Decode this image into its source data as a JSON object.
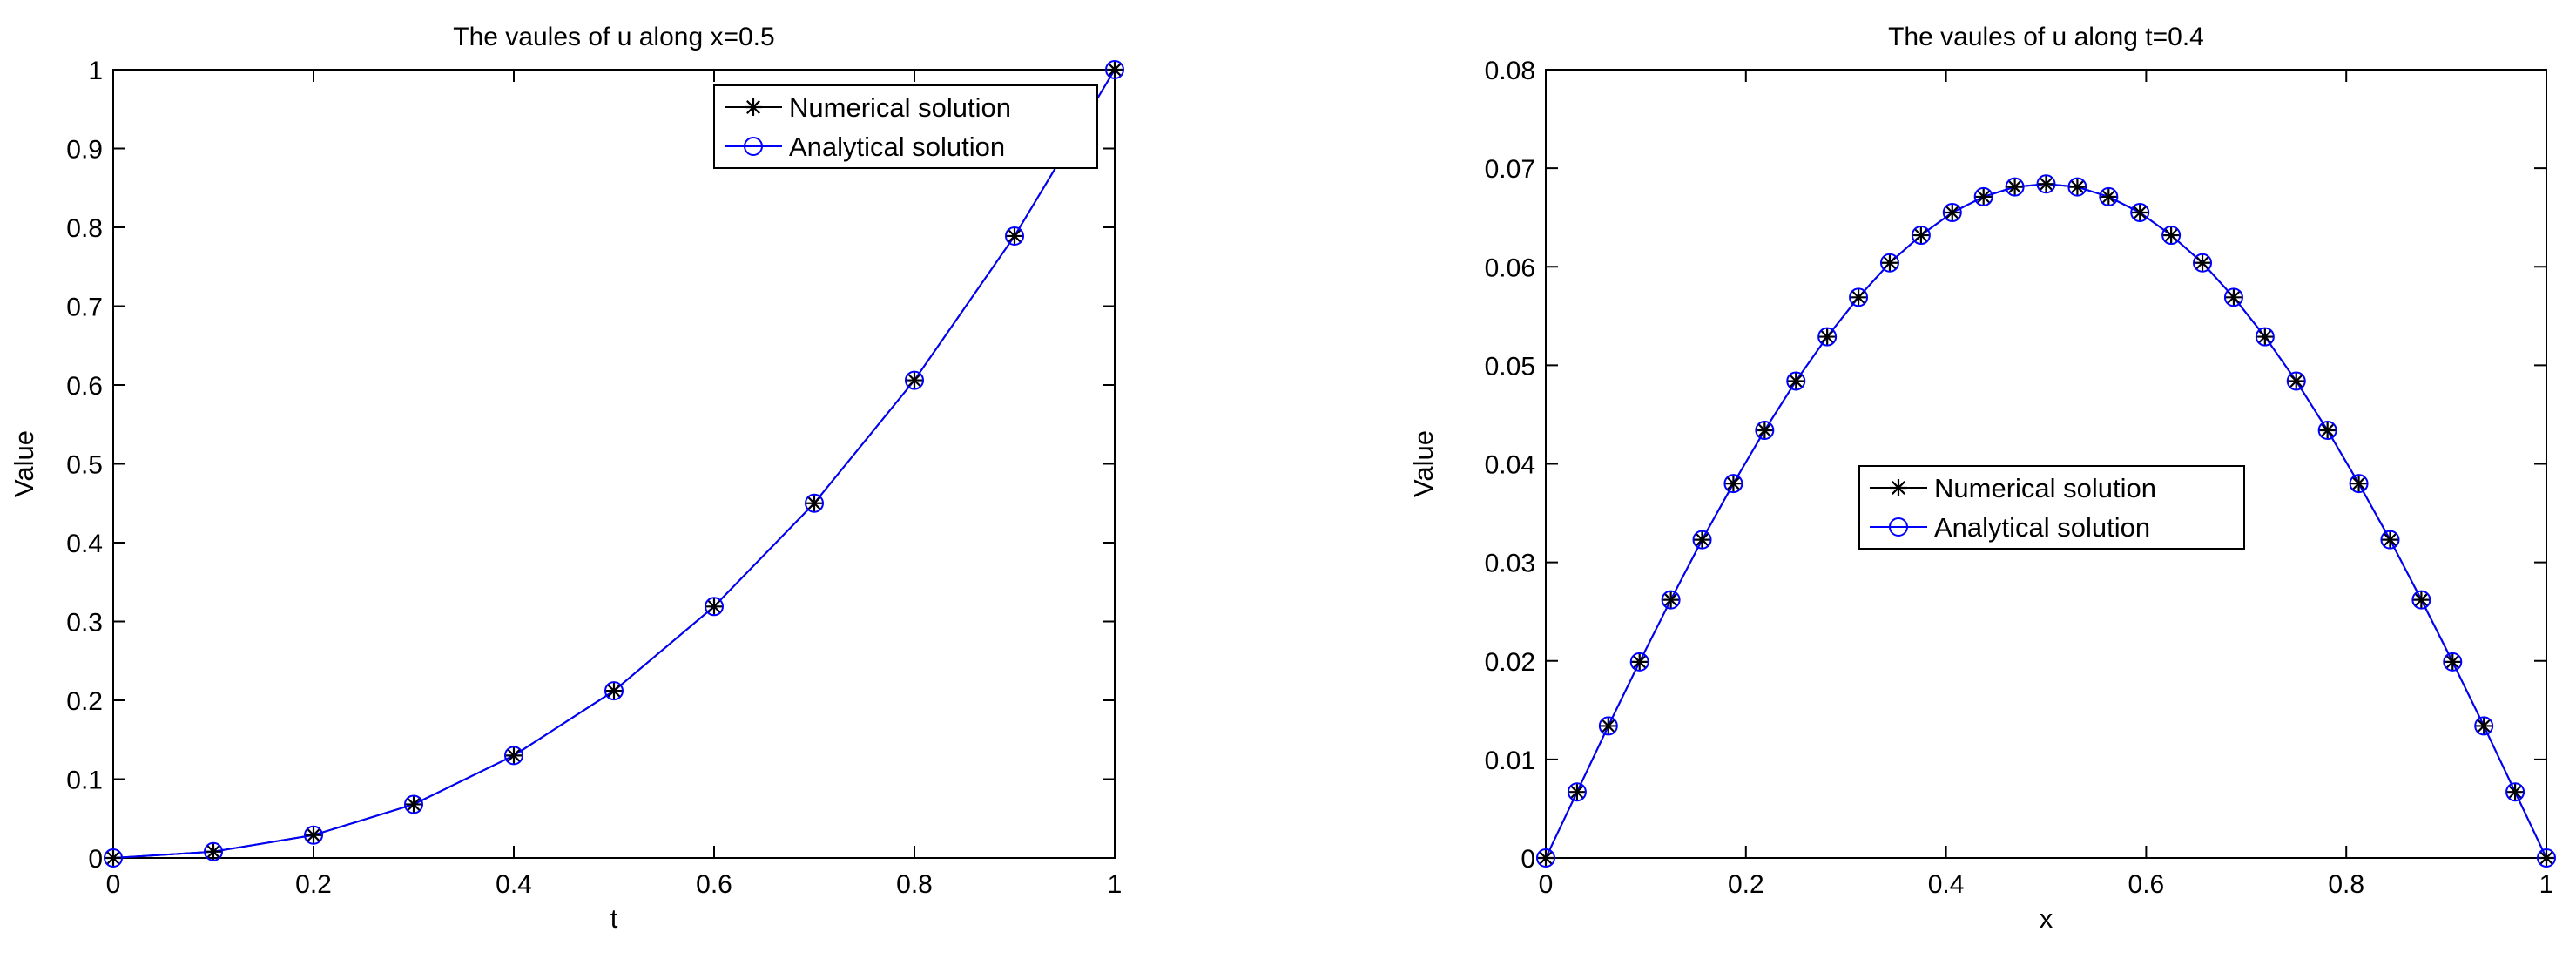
{
  "chart_data": [
    {
      "type": "line",
      "title": "The vaules of u along x=0.5",
      "xlabel": "t",
      "ylabel": "Value",
      "xlim": [
        0,
        1
      ],
      "ylim": [
        0,
        1
      ],
      "xticks": [
        0,
        0.2,
        0.4,
        0.6,
        0.8,
        1
      ],
      "xtick_labels": [
        "0",
        "0.2",
        "0.4",
        "0.6",
        "0.8",
        "1"
      ],
      "yticks": [
        0,
        0.1,
        0.2,
        0.3,
        0.4,
        0.5,
        0.6,
        0.7,
        0.8,
        0.9,
        1
      ],
      "ytick_labels": [
        "0",
        "0.1",
        "0.2",
        "0.3",
        "0.4",
        "0.5",
        "0.6",
        "0.7",
        "0.8",
        "0.9",
        "1"
      ],
      "grid": false,
      "legend_position": "top-right",
      "x": [
        0,
        0.1,
        0.2,
        0.3,
        0.4,
        0.5,
        0.6,
        0.7,
        0.8,
        0.9,
        1
      ],
      "series": [
        {
          "name": "Numerical solution",
          "color": "#000000",
          "marker": "asterisk",
          "values": [
            0,
            0.008,
            0.029,
            0.068,
            0.13,
            0.212,
            0.319,
            0.45,
            0.606,
            0.789,
            1
          ]
        },
        {
          "name": "Analytical solution",
          "color": "#0000ff",
          "marker": "circle",
          "values": [
            0,
            0.008,
            0.029,
            0.068,
            0.13,
            0.212,
            0.319,
            0.45,
            0.606,
            0.789,
            1
          ]
        }
      ]
    },
    {
      "type": "line",
      "title": "The vaules of u along t=0.4",
      "xlabel": "x",
      "ylabel": "Value",
      "xlim": [
        0,
        1
      ],
      "ylim": [
        0,
        0.08
      ],
      "xticks": [
        0,
        0.2,
        0.4,
        0.6,
        0.8,
        1
      ],
      "xtick_labels": [
        "0",
        "0.2",
        "0.4",
        "0.6",
        "0.8",
        "1"
      ],
      "yticks": [
        0,
        0.01,
        0.02,
        0.03,
        0.04,
        0.05,
        0.06,
        0.07,
        0.08
      ],
      "ytick_labels": [
        "0",
        "0.01",
        "0.02",
        "0.03",
        "0.04",
        "0.05",
        "0.06",
        "0.07",
        "0.08"
      ],
      "grid": false,
      "legend_position": "center",
      "x": [
        0,
        0.03125,
        0.0625,
        0.09375,
        0.125,
        0.15625,
        0.1875,
        0.21875,
        0.25,
        0.28125,
        0.3125,
        0.34375,
        0.375,
        0.40625,
        0.4375,
        0.46875,
        0.5,
        0.53125,
        0.5625,
        0.59375,
        0.625,
        0.65625,
        0.6875,
        0.71875,
        0.75,
        0.78125,
        0.8125,
        0.84375,
        0.875,
        0.90625,
        0.9375,
        0.96875,
        1
      ],
      "series": [
        {
          "name": "Numerical solution",
          "color": "#000000",
          "marker": "asterisk",
          "values": [
            0,
            0.0067,
            0.0134,
            0.0199,
            0.0262,
            0.0323,
            0.038,
            0.0434,
            0.0484,
            0.0529,
            0.0569,
            0.0604,
            0.0632,
            0.0655,
            0.0671,
            0.0681,
            0.0684,
            0.0681,
            0.0671,
            0.0655,
            0.0632,
            0.0604,
            0.0569,
            0.0529,
            0.0484,
            0.0434,
            0.038,
            0.0323,
            0.0262,
            0.0199,
            0.0134,
            0.0067,
            0
          ]
        },
        {
          "name": "Analytical solution",
          "color": "#0000ff",
          "marker": "circle",
          "values": [
            0,
            0.0067,
            0.0134,
            0.0199,
            0.0262,
            0.0323,
            0.038,
            0.0434,
            0.0484,
            0.0529,
            0.0569,
            0.0604,
            0.0632,
            0.0655,
            0.0671,
            0.0681,
            0.0684,
            0.0681,
            0.0671,
            0.0655,
            0.0632,
            0.0604,
            0.0569,
            0.0529,
            0.0484,
            0.0434,
            0.038,
            0.0323,
            0.0262,
            0.0199,
            0.0134,
            0.0067,
            0
          ]
        }
      ]
    }
  ]
}
